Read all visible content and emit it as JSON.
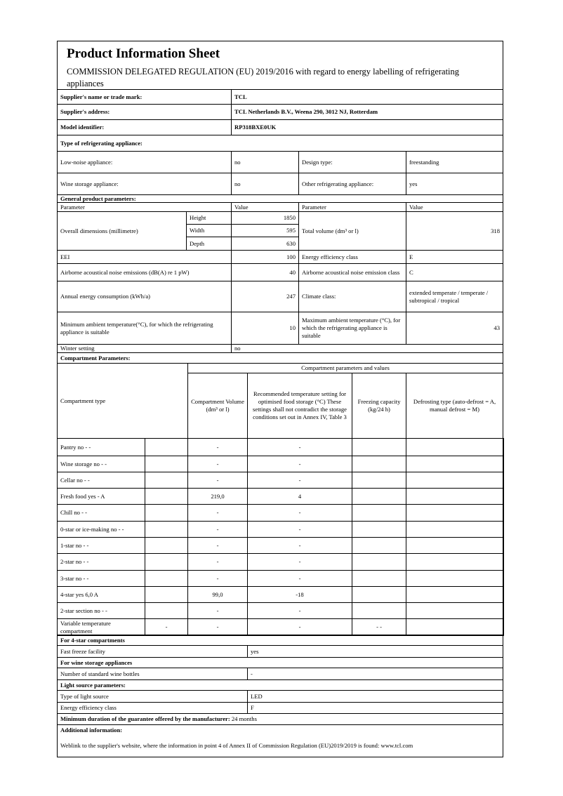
{
  "header": {
    "title": "Product Information Sheet",
    "subtitle": "COMMISSION DELEGATED REGULATION (EU) 2019/2016 with regard to energy labelling of refrigerating appliances"
  },
  "supplier": {
    "name_label": "Supplier's name or trade mark:",
    "name": "TCL",
    "address_label": "Supplier's address:",
    "address": "TCL Netherlands B.V., Weena 290, 3012 NJ, Rotterdam",
    "model_label": "Model identifier:",
    "model": "RP318BXE0UK"
  },
  "type": {
    "heading": "Type of refrigerating appliance:",
    "low_noise_label": "Low-noise appliance:",
    "low_noise": "no",
    "design_label": "Design type:",
    "design": "freestanding",
    "wine_label": "Wine storage appliance:",
    "wine": "no",
    "other_label": "Other refrigerating appliance:",
    "other": "yes"
  },
  "general": {
    "heading": "General product parameters:",
    "col_param": "Parameter",
    "col_value": "Value",
    "dims_label": "Overall dimensions (millimetre)",
    "height_label": "Height",
    "height": "1850",
    "width_label": "Width",
    "width": "595",
    "depth_label": "Depth",
    "depth": "630",
    "volume_label": "Total volume (dm³ or l)",
    "volume": "318",
    "eei_label": "EEI",
    "eei": "100",
    "eclass_label": "Energy efficiency class",
    "eclass": "E",
    "noise_label": "Airborne acoustical noise emissions (dB(A) re 1 pW)",
    "noise": "40",
    "noise_class_label": "Airborne acoustical noise emission class",
    "noise_class": "C",
    "annual_label": "Annual energy consumption (kWh/a)",
    "annual": "247",
    "climate_label": "Climate class:",
    "climate": "extended temperate / temperate / subtropical / tropical",
    "min_temp_label": "Minimum ambient temperature(°C), for which the refrigerating appliance is suitable",
    "min_temp": "10",
    "max_temp_label": "Maximum ambient temperature (°C), for which the refrigerating appliance is suitable",
    "max_temp": "43",
    "winter_label": "Winter setting",
    "winter": "no"
  },
  "compartments": {
    "heading": "Compartment Parameters:",
    "col_type": "Compartment type",
    "col_group": "Compartment parameters and values",
    "col_volume": "Compartment Volume (dm³ or l)",
    "col_temp": "Recommended temperature setting for optimised food storage (°C) These settings shall not contradict the storage conditions set out in Annex IV, Table 3",
    "col_freeze": "Freezing capacity (kg/24 h)",
    "col_defrost": "Defrosting type (auto-defrost = A, manual  defrost = M)",
    "rows": [
      {
        "type": "Pantry no - -",
        "sub": "",
        "volume": "-",
        "temp": "-",
        "freeze": "",
        "defrost": ""
      },
      {
        "type": "Wine storage no - -",
        "sub": "",
        "volume": "-",
        "temp": "-",
        "freeze": "",
        "defrost": ""
      },
      {
        "type": "Cellar no - -",
        "sub": "",
        "volume": "-",
        "temp": "-",
        "freeze": "",
        "defrost": ""
      },
      {
        "type": "Fresh food yes - A",
        "sub": "",
        "volume": "219,0",
        "temp": "4",
        "freeze": "",
        "defrost": ""
      },
      {
        "type": "Chill no - -",
        "sub": "",
        "volume": "-",
        "temp": "-",
        "freeze": "",
        "defrost": ""
      },
      {
        "type": "0-star or ice-making no - -",
        "sub": "",
        "volume": "-",
        "temp": "-",
        "freeze": "",
        "defrost": ""
      },
      {
        "type": "1-star no - -",
        "sub": "",
        "volume": "-",
        "temp": "-",
        "freeze": "",
        "defrost": ""
      },
      {
        "type": "2-star no - -",
        "sub": "",
        "volume": "-",
        "temp": "-",
        "freeze": "",
        "defrost": ""
      },
      {
        "type": "3-star no - -",
        "sub": "",
        "volume": "-",
        "temp": "-",
        "freeze": "",
        "defrost": ""
      },
      {
        "type": "4-star yes 6,0 A",
        "sub": "",
        "volume": "99,0",
        "temp": "-18",
        "freeze": "",
        "defrost": ""
      },
      {
        "type": "2-star section no - -",
        "sub": "",
        "volume": "-",
        "temp": "-",
        "freeze": "",
        "defrost": ""
      },
      {
        "type": "Variable temperature compartment",
        "sub": "-",
        "volume": "-",
        "temp": "-",
        "freeze": "- -",
        "defrost": ""
      }
    ]
  },
  "four_star": {
    "heading": "For 4-star compartments",
    "fast_freeze_label": "Fast freeze facility",
    "fast_freeze": "yes"
  },
  "wine_storage": {
    "heading": "For wine storage appliances",
    "bottles_label": "Number of standard wine bottles",
    "bottles": "-"
  },
  "light": {
    "heading": "Light source parameters:",
    "type_label": "Type of light source",
    "type": "LED",
    "class_label": "Energy efficiency class",
    "class": "F"
  },
  "guarantee": {
    "label": "Minimum duration of the guarantee offered by the manufacturer:",
    "value": "24 months"
  },
  "additional": {
    "heading": "Additional information:",
    "text": "Weblink to the supplier's website, where the information in point 4 of Annex II of Commission Regulation (EU)2019/2019 is found: www.tcl.com"
  }
}
